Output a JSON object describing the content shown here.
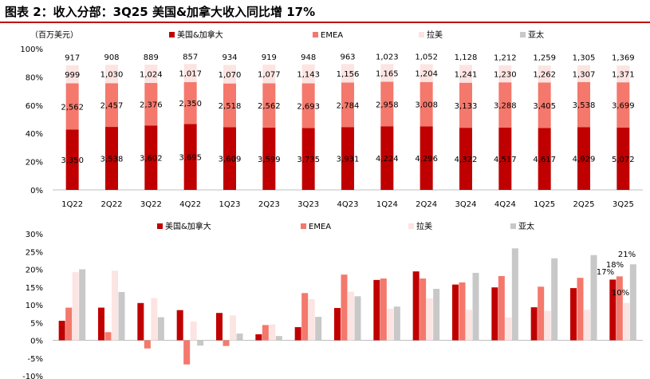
{
  "title": "图表 2：收入分部：3Q25 美国&加拿大收入同比增 17%",
  "colors": {
    "us_canada": "#c00000",
    "emea": "#f4786c",
    "latam": "#fbe4e2",
    "apac": "#c8c8c8",
    "title_rule": "#c00000"
  },
  "chart_data": [
    {
      "type": "bar",
      "stacked": "percent",
      "unit_label": "（百万美元）",
      "categories": [
        "1Q22",
        "2Q22",
        "3Q22",
        "4Q22",
        "1Q23",
        "2Q23",
        "3Q23",
        "4Q23",
        "1Q24",
        "2Q24",
        "3Q24",
        "4Q24",
        "1Q25",
        "2Q25",
        "3Q25"
      ],
      "ylim": [
        0,
        100
      ],
      "yticks": [
        "0%",
        "20%",
        "40%",
        "60%",
        "80%",
        "100%"
      ],
      "legend_position": "top",
      "series": [
        {
          "name": "美国&加拿大",
          "values": [
            3350,
            3538,
            3602,
            3695,
            3609,
            3599,
            3735,
            3931,
            4224,
            4296,
            4322,
            4517,
            4617,
            4929,
            5072
          ],
          "labels": [
            "3,350",
            "3,538",
            "3,602",
            "3,695",
            "3,609",
            "3,599",
            "3,735",
            "3,931",
            "4,224",
            "4,296",
            "4,322",
            "4,517",
            "4,617",
            "4,929",
            "5,072"
          ]
        },
        {
          "name": "EMEA",
          "values": [
            2562,
            2457,
            2376,
            2350,
            2518,
            2562,
            2693,
            2784,
            2958,
            3008,
            3133,
            3288,
            3405,
            3538,
            3699
          ],
          "labels": [
            "2,562",
            "2,457",
            "2,376",
            "2,350",
            "2,518",
            "2,562",
            "2,693",
            "2,784",
            "2,958",
            "3,008",
            "3,133",
            "3,288",
            "3,405",
            "3,538",
            "3,699"
          ]
        },
        {
          "name": "拉美",
          "values": [
            999,
            1030,
            1024,
            1017,
            1070,
            1077,
            1143,
            1156,
            1165,
            1204,
            1241,
            1230,
            1262,
            1307,
            1371
          ],
          "labels": [
            "999",
            "1,030",
            "1,024",
            "1,017",
            "1,070",
            "1,077",
            "1,143",
            "1,156",
            "1,165",
            "1,204",
            "1,241",
            "1,230",
            "1,262",
            "1,307",
            "1,371"
          ]
        },
        {
          "name": "亚太",
          "values": [
            917,
            908,
            889,
            857,
            934,
            919,
            948,
            963,
            1023,
            1052,
            1128,
            1212,
            1259,
            1305,
            1369
          ],
          "labels": [
            "917",
            "908",
            "889",
            "857",
            "934",
            "919",
            "948",
            "963",
            "1,023",
            "1,052",
            "1,128",
            "1,212",
            "1,259",
            "1,305",
            "1,369"
          ]
        }
      ]
    },
    {
      "type": "bar",
      "grouped": true,
      "categories": [
        "1Q22",
        "2Q22",
        "3Q22",
        "4Q22",
        "1Q23",
        "2Q23",
        "3Q23",
        "4Q23",
        "1Q24",
        "2Q24",
        "3Q24",
        "4Q24",
        "1Q25",
        "2Q25",
        "3Q25"
      ],
      "ylim": [
        -10,
        30
      ],
      "yticks": [
        "-10%",
        "-5%",
        "0%",
        "5%",
        "10%",
        "15%",
        "20%",
        "25%",
        "30%"
      ],
      "legend_position": "top",
      "annotations": [
        "17%",
        "18%",
        "10%",
        "21%"
      ],
      "series": [
        {
          "name": "美国&加拿大",
          "values": [
            5.5,
            9.2,
            10.5,
            8.5,
            7.7,
            1.7,
            3.7,
            9.1,
            17.0,
            19.4,
            15.7,
            14.9,
            9.3,
            14.7,
            17.1
          ]
        },
        {
          "name": "EMEA",
          "values": [
            9.2,
            2.3,
            -2.3,
            -6.8,
            -1.6,
            4.3,
            13.3,
            18.5,
            17.4,
            17.4,
            16.3,
            18.1,
            15.1,
            17.6,
            18.0
          ]
        },
        {
          "name": "拉美",
          "values": [
            19.2,
            19.6,
            11.9,
            5.3,
            7.0,
            4.5,
            11.6,
            13.7,
            8.9,
            11.8,
            8.6,
            6.4,
            8.3,
            8.6,
            10.5
          ]
        },
        {
          "name": "亚太",
          "values": [
            20.0,
            13.6,
            6.5,
            -1.5,
            1.9,
            1.2,
            6.6,
            12.4,
            9.5,
            14.5,
            19.0,
            25.9,
            23.1,
            24.0,
            21.4
          ]
        }
      ]
    }
  ]
}
